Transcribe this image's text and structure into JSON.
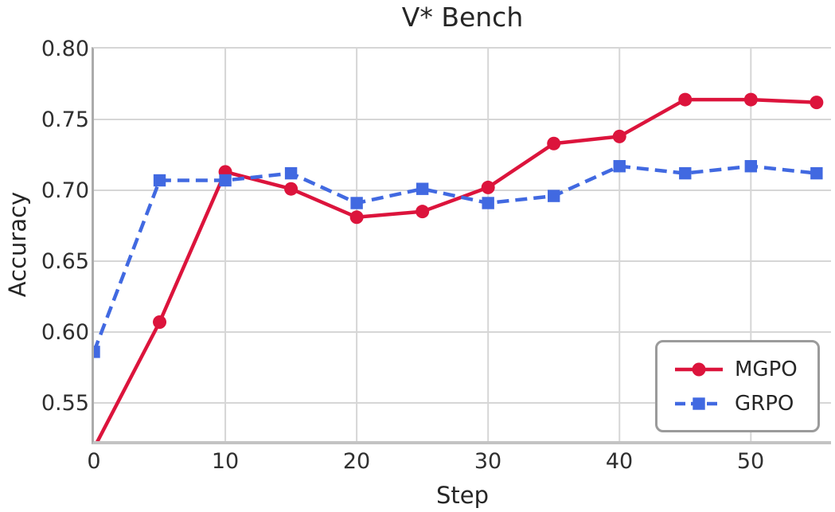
{
  "chart_data": {
    "type": "line",
    "title": "V* Bench",
    "xlabel": "Step",
    "ylabel": "Accuracy",
    "x": [
      0,
      5,
      10,
      15,
      20,
      25,
      30,
      35,
      40,
      45,
      50,
      55
    ],
    "series": [
      {
        "name": "MGPO",
        "color": "#dc143c",
        "line_style": "solid",
        "marker": "circle",
        "values": [
          0.518,
          0.607,
          0.713,
          0.701,
          0.681,
          0.685,
          0.702,
          0.733,
          0.738,
          0.764,
          0.764,
          0.762
        ]
      },
      {
        "name": "GRPO",
        "color": "#4169e1",
        "line_style": "dashed",
        "marker": "square",
        "values": [
          0.586,
          0.707,
          0.707,
          0.712,
          0.691,
          0.701,
          0.691,
          0.696,
          0.717,
          0.712,
          0.717,
          0.712
        ]
      }
    ],
    "xlim": [
      0,
      56.1
    ],
    "ylim": [
      0.523,
      0.8
    ],
    "xticks": [
      0,
      10,
      20,
      30,
      40,
      50
    ],
    "yticks": [
      0.55,
      0.6,
      0.65,
      0.7,
      0.75,
      0.8
    ],
    "grid": true,
    "legend_position": "lower right"
  },
  "palette": {
    "background": "#ffffff",
    "text": "#262626",
    "tick_text": "#2f2f2f",
    "grid": "#d6d6d6",
    "spine_left": "#ababab",
    "spine_bottom": "#c3c3c3",
    "legend_border": "#9b9b9b"
  }
}
